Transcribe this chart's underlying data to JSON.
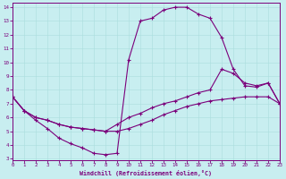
{
  "xlabel": "Windchill (Refroidissement éolien,°C)",
  "bg_color": "#c8eef0",
  "line_color": "#7b007b",
  "xlim_min": 0,
  "xlim_max": 23,
  "ylim_min": 3,
  "ylim_max": 14,
  "xticks": [
    0,
    1,
    2,
    3,
    4,
    5,
    6,
    7,
    8,
    9,
    10,
    11,
    12,
    13,
    14,
    15,
    16,
    17,
    18,
    19,
    20,
    21,
    22,
    23
  ],
  "yticks": [
    3,
    4,
    5,
    6,
    7,
    8,
    9,
    10,
    11,
    12,
    13,
    14
  ],
  "line1_x": [
    0,
    1,
    2,
    3,
    4,
    5,
    6,
    7,
    8,
    9,
    10,
    11,
    12,
    13,
    14,
    15,
    16,
    17,
    18,
    19,
    20,
    21,
    22,
    23
  ],
  "line1_y": [
    7.5,
    6.5,
    5.8,
    5.2,
    4.5,
    4.1,
    3.8,
    3.4,
    3.3,
    3.4,
    10.2,
    13.0,
    13.2,
    13.8,
    14.0,
    14.0,
    13.5,
    13.2,
    11.8,
    9.5,
    8.3,
    8.2,
    8.5,
    7.0
  ],
  "line2_x": [
    0,
    1,
    2,
    3,
    4,
    5,
    6,
    7,
    8,
    9,
    10,
    11,
    12,
    13,
    14,
    15,
    16,
    17,
    18,
    19,
    20,
    21,
    22,
    23
  ],
  "line2_y": [
    7.5,
    6.5,
    6.0,
    5.8,
    5.5,
    5.3,
    5.2,
    5.1,
    5.0,
    5.0,
    5.2,
    5.5,
    5.8,
    6.2,
    6.5,
    6.8,
    7.0,
    7.2,
    7.3,
    7.4,
    7.5,
    7.5,
    7.5,
    7.0
  ],
  "line3_x": [
    0,
    1,
    2,
    3,
    4,
    5,
    6,
    7,
    8,
    9,
    10,
    11,
    12,
    13,
    14,
    15,
    16,
    17,
    18,
    19,
    20,
    21,
    22,
    23
  ],
  "line3_y": [
    7.5,
    6.5,
    6.0,
    5.8,
    5.5,
    5.3,
    5.2,
    5.1,
    5.0,
    5.5,
    6.0,
    6.3,
    6.7,
    7.0,
    7.2,
    7.5,
    7.8,
    8.0,
    9.5,
    9.2,
    8.5,
    8.3,
    8.5,
    7.0
  ]
}
